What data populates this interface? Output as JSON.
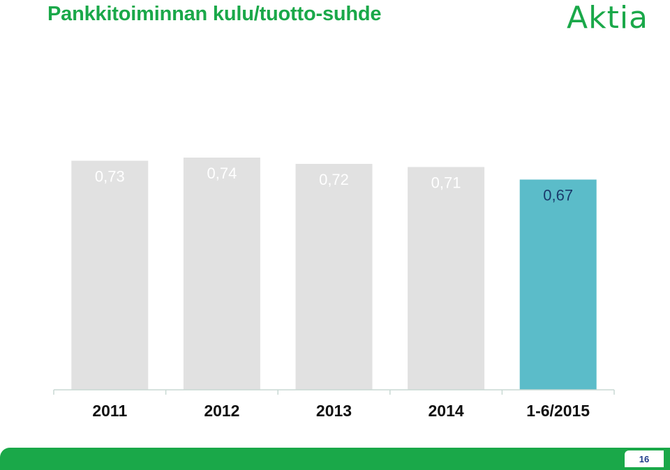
{
  "header": {
    "title": "Pankkitoiminnan kulu/tuotto-suhde",
    "logo_text": "Aktia"
  },
  "footer": {
    "page_number": "16"
  },
  "colors": {
    "brand_green": "#1aa849",
    "bar_default": "#e1e1e1",
    "bar_highlight": "#5bbcc9",
    "axis": "#c8d9d3"
  },
  "chart_data": {
    "type": "bar",
    "categories": [
      "2011",
      "2012",
      "2013",
      "2014",
      "1-6/2015"
    ],
    "values": [
      0.73,
      0.74,
      0.72,
      0.71,
      0.67
    ],
    "value_labels": [
      "0,73",
      "0,74",
      "0,72",
      "0,71",
      "0,67"
    ],
    "highlight_index": 4,
    "title": "",
    "xlabel": "",
    "ylabel": "",
    "ylim": [
      0,
      0.74
    ],
    "grid": false,
    "legend": "none"
  }
}
